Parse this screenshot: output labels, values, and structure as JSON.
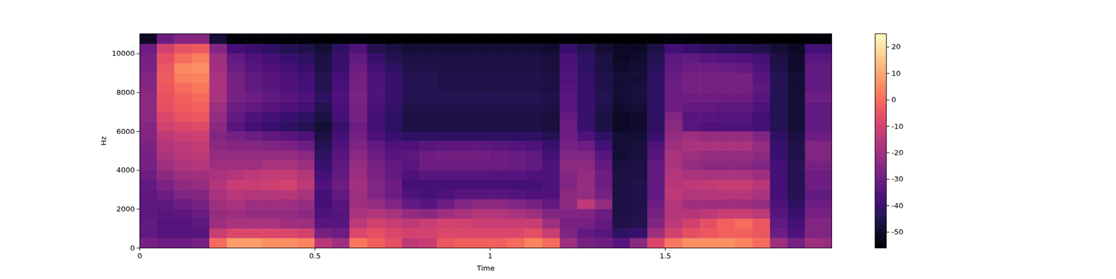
{
  "chart_data": {
    "type": "heatmap",
    "xlabel": "Time",
    "ylabel": "Hz",
    "color": "magma",
    "xlim": [
      0,
      1.975
    ],
    "xticks": [
      0,
      0.5,
      1,
      1.5
    ],
    "ylim": [
      0,
      11025
    ],
    "yticks": [
      0,
      2000,
      4000,
      6000,
      8000,
      10000
    ],
    "time_edges": [
      0,
      0.05,
      0.1,
      0.15,
      0.2,
      0.25,
      0.3,
      0.35,
      0.4,
      0.45,
      0.5,
      0.55,
      0.6,
      0.65,
      0.7,
      0.75,
      0.8,
      0.85,
      0.9,
      0.95,
      1,
      1.05,
      1.1,
      1.15,
      1.2,
      1.25,
      1.3,
      1.35,
      1.4,
      1.45,
      1.5,
      1.55,
      1.6,
      1.65,
      1.7,
      1.75,
      1.8,
      1.85,
      1.9,
      1.95,
      1.975
    ],
    "freq_edges": [
      0,
      500,
      1000,
      1500,
      2000,
      2500,
      3000,
      3500,
      4000,
      4500,
      5000,
      5500,
      6000,
      6500,
      7000,
      7500,
      8000,
      8500,
      9000,
      9500,
      10000,
      10500,
      11025
    ],
    "cells": [
      [
        -28,
        -32,
        -32,
        -33,
        -33,
        -33,
        -32,
        -30,
        -28,
        -28,
        -27,
        -26,
        -25,
        -24,
        -24,
        -24,
        -25,
        -26,
        -27,
        -28,
        -30,
        -50
      ],
      [
        -30,
        -35,
        -35,
        -34,
        -33,
        -30,
        -27,
        -24,
        -20,
        -18,
        -16,
        -14,
        -10,
        -8,
        -6,
        -5,
        -4,
        -3,
        -4,
        -6,
        -10,
        -30
      ],
      [
        -30,
        -35,
        -35,
        -33,
        -30,
        -26,
        -23,
        -20,
        -17,
        -15,
        -14,
        -12,
        -8,
        -5,
        -3,
        -2,
        0,
        3,
        5,
        0,
        -5,
        -25
      ],
      [
        -28,
        -34,
        -33,
        -31,
        -28,
        -25,
        -22,
        -19,
        -16,
        -14,
        -13,
        -11,
        -7,
        -4,
        -2,
        0,
        2,
        4,
        6,
        3,
        -3,
        -25
      ],
      [
        0,
        -12,
        -20,
        -22,
        -20,
        -18,
        -16,
        -18,
        -20,
        -22,
        -24,
        -26,
        -24,
        -22,
        -20,
        -18,
        -18,
        -18,
        -19,
        -20,
        -25,
        -48
      ],
      [
        8,
        -8,
        -18,
        -20,
        -18,
        -15,
        -12,
        -16,
        -20,
        -22,
        -25,
        -28,
        -34,
        -32,
        -30,
        -28,
        -28,
        -28,
        -30,
        -32,
        -38,
        -55
      ],
      [
        8,
        -8,
        -18,
        -22,
        -20,
        -16,
        -12,
        -14,
        -20,
        -22,
        -25,
        -30,
        -38,
        -36,
        -32,
        -30,
        -32,
        -32,
        -34,
        -36,
        -40,
        -55
      ],
      [
        6,
        -8,
        -18,
        -22,
        -20,
        -16,
        -11,
        -13,
        -18,
        -22,
        -26,
        -32,
        -40,
        -38,
        -34,
        -32,
        -34,
        -34,
        -36,
        -38,
        -42,
        -55
      ],
      [
        6,
        -8,
        -20,
        -22,
        -20,
        -15,
        -10,
        -13,
        -18,
        -22,
        -27,
        -34,
        -42,
        -40,
        -36,
        -34,
        -36,
        -36,
        -38,
        -40,
        -44,
        -55
      ],
      [
        4,
        -10,
        -20,
        -24,
        -22,
        -18,
        -14,
        -16,
        -20,
        -24,
        -30,
        -36,
        -44,
        -42,
        -38,
        -36,
        -38,
        -38,
        -40,
        -42,
        -45,
        -55
      ],
      [
        -15,
        -28,
        -34,
        -36,
        -38,
        -38,
        -36,
        -38,
        -40,
        -42,
        -44,
        -46,
        -48,
        -46,
        -44,
        -42,
        -44,
        -44,
        -46,
        -46,
        -48,
        -56
      ],
      [
        -20,
        -30,
        -34,
        -35,
        -34,
        -32,
        -30,
        -32,
        -33,
        -34,
        -36,
        -38,
        -40,
        -38,
        -37,
        -36,
        -37,
        -38,
        -40,
        -40,
        -42,
        -56
      ],
      [
        2,
        -8,
        -14,
        -18,
        -20,
        -20,
        -19,
        -20,
        -22,
        -24,
        -26,
        -28,
        -30,
        -28,
        -28,
        -27,
        -28,
        -29,
        -30,
        -32,
        -36,
        -55
      ],
      [
        -2,
        -6,
        -10,
        -16,
        -22,
        -26,
        -26,
        -27,
        -28,
        -30,
        -32,
        -36,
        -38,
        -38,
        -37,
        -36,
        -36,
        -36,
        -38,
        -40,
        -44,
        -56
      ],
      [
        -6,
        -8,
        -12,
        -18,
        -26,
        -30,
        -30,
        -32,
        -32,
        -34,
        -36,
        -40,
        -42,
        -42,
        -41,
        -40,
        -40,
        -40,
        -42,
        -44,
        -46,
        -56
      ],
      [
        -14,
        -10,
        -14,
        -22,
        -32,
        -36,
        -38,
        -36,
        -34,
        -33,
        -36,
        -42,
        -46,
        -46,
        -45,
        -44,
        -44,
        -44,
        -45,
        -46,
        -48,
        -56
      ],
      [
        -12,
        -10,
        -12,
        -24,
        -34,
        -38,
        -38,
        -34,
        -30,
        -30,
        -34,
        -42,
        -46,
        -46,
        -45,
        -44,
        -44,
        -44,
        -45,
        -46,
        -48,
        -56
      ],
      [
        -4,
        -8,
        -10,
        -20,
        -30,
        -36,
        -38,
        -34,
        -30,
        -29,
        -33,
        -42,
        -46,
        -46,
        -45,
        -44,
        -45,
        -45,
        -46,
        -46,
        -48,
        -56
      ],
      [
        -2,
        -8,
        -10,
        -18,
        -26,
        -34,
        -38,
        -34,
        -30,
        -29,
        -33,
        -42,
        -46,
        -46,
        -45,
        -44,
        -45,
        -45,
        -46,
        -46,
        -48,
        -56
      ],
      [
        -2,
        -8,
        -12,
        -16,
        -24,
        -34,
        -38,
        -34,
        -30,
        -29,
        -33,
        -42,
        -46,
        -46,
        -45,
        -44,
        -45,
        -45,
        -46,
        -46,
        -48,
        -56
      ],
      [
        -2,
        -8,
        -12,
        -16,
        -24,
        -34,
        -38,
        -35,
        -30,
        -30,
        -34,
        -42,
        -46,
        -46,
        -45,
        -44,
        -45,
        -45,
        -46,
        -46,
        -48,
        -56
      ],
      [
        0,
        -8,
        -12,
        -18,
        -26,
        -35,
        -38,
        -35,
        -31,
        -31,
        -35,
        -42,
        -46,
        -46,
        -45,
        -44,
        -45,
        -45,
        -46,
        -46,
        -48,
        -56
      ],
      [
        4,
        -6,
        -12,
        -20,
        -28,
        -36,
        -38,
        -36,
        -32,
        -32,
        -36,
        -42,
        -46,
        -46,
        -45,
        -44,
        -45,
        -45,
        -46,
        -46,
        -48,
        -56
      ],
      [
        0,
        -12,
        -20,
        -26,
        -32,
        -36,
        -36,
        -36,
        -36,
        -38,
        -40,
        -44,
        -47,
        -47,
        -46,
        -45,
        -46,
        -46,
        -47,
        -47,
        -49,
        -56
      ],
      [
        -20,
        -26,
        -28,
        -26,
        -24,
        -24,
        -26,
        -25,
        -24,
        -26,
        -28,
        -30,
        -30,
        -32,
        -34,
        -34,
        -35,
        -36,
        -36,
        -37,
        -40,
        -55
      ],
      [
        -28,
        -32,
        -28,
        -26,
        -14,
        -22,
        -22,
        -22,
        -24,
        -26,
        -30,
        -36,
        -40,
        -40,
        -40,
        -40,
        -40,
        -41,
        -42,
        -42,
        -44,
        -56
      ],
      [
        -30,
        -34,
        -32,
        -30,
        -22,
        -28,
        -30,
        -30,
        -32,
        -34,
        -38,
        -42,
        -46,
        -46,
        -45,
        -44,
        -45,
        -45,
        -46,
        -46,
        -48,
        -56
      ],
      [
        -34,
        -42,
        -45,
        -46,
        -46,
        -46,
        -46,
        -46,
        -47,
        -48,
        -48,
        -48,
        -50,
        -50,
        -49,
        -48,
        -48,
        -48,
        -49,
        -50,
        -50,
        -56
      ],
      [
        -24,
        -40,
        -44,
        -45,
        -45,
        -45,
        -45,
        -46,
        -46,
        -47,
        -47,
        -48,
        -49,
        -49,
        -48,
        -47,
        -47,
        -48,
        -48,
        -49,
        -50,
        -56
      ],
      [
        -8,
        -20,
        -26,
        -28,
        -30,
        -32,
        -32,
        -32,
        -32,
        -34,
        -36,
        -40,
        -42,
        -42,
        -42,
        -42,
        -42,
        -42,
        -43,
        -44,
        -46,
        -56
      ],
      [
        2,
        -10,
        -14,
        -16,
        -16,
        -14,
        -15,
        -16,
        -18,
        -18,
        -20,
        -22,
        -24,
        -26,
        -30,
        -30,
        -30,
        -31,
        -32,
        -33,
        -38,
        -55
      ],
      [
        6,
        -6,
        -10,
        -16,
        -20,
        -16,
        -14,
        -18,
        -22,
        -20,
        -18,
        -20,
        -34,
        -34,
        -32,
        -30,
        -28,
        -28,
        -30,
        -32,
        -40,
        -55
      ],
      [
        6,
        -4,
        -6,
        -14,
        -20,
        -16,
        -13,
        -18,
        -24,
        -22,
        -18,
        -22,
        -36,
        -34,
        -32,
        -30,
        -28,
        -28,
        -30,
        -34,
        -42,
        -56
      ],
      [
        6,
        -2,
        -2,
        -12,
        -20,
        -15,
        -12,
        -18,
        -24,
        -22,
        -18,
        -22,
        -36,
        -35,
        -33,
        -30,
        -28,
        -28,
        -31,
        -35,
        -43,
        -56
      ],
      [
        4,
        -2,
        0,
        -12,
        -20,
        -15,
        -12,
        -18,
        -24,
        -22,
        -18,
        -22,
        -36,
        -35,
        -33,
        -30,
        -28,
        -28,
        -32,
        -36,
        -44,
        -56
      ],
      [
        0,
        -4,
        -4,
        -14,
        -22,
        -18,
        -15,
        -20,
        -26,
        -24,
        -22,
        -26,
        -38,
        -38,
        -36,
        -34,
        -33,
        -34,
        -36,
        -38,
        -45,
        -56
      ],
      [
        -20,
        -30,
        -32,
        -34,
        -36,
        -38,
        -38,
        -38,
        -38,
        -40,
        -40,
        -42,
        -44,
        -44,
        -44,
        -44,
        -44,
        -44,
        -45,
        -46,
        -48,
        -56
      ],
      [
        -28,
        -36,
        -38,
        -40,
        -42,
        -44,
        -44,
        -44,
        -44,
        -45,
        -45,
        -46,
        -48,
        -48,
        -48,
        -48,
        -48,
        -48,
        -49,
        -49,
        -50,
        -56
      ],
      [
        -20,
        -26,
        -26,
        -28,
        -30,
        -32,
        -30,
        -30,
        -28,
        -26,
        -26,
        -30,
        -32,
        -32,
        -32,
        -30,
        -32,
        -32,
        -32,
        -34,
        -38,
        -55
      ],
      [
        -22,
        -26,
        -26,
        -28,
        -30,
        -32,
        -30,
        -30,
        -28,
        -26,
        -26,
        -30,
        -32,
        -32,
        -32,
        -30,
        -32,
        -32,
        -32,
        -34,
        -38,
        -55
      ]
    ],
    "colorbar": {
      "range": [
        -56,
        25
      ],
      "ticks": [
        -50,
        -40,
        -30,
        -20,
        -10,
        0,
        10,
        20
      ]
    }
  }
}
